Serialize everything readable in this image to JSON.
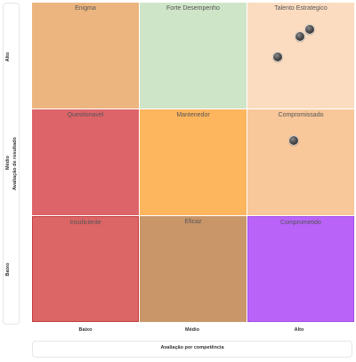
{
  "chart_data": {
    "type": "scatter",
    "xlabel": "Avaliação por competência",
    "ylabel": "Avaliação de resultado",
    "x_categories": [
      "Baixo",
      "Médio",
      "Alto"
    ],
    "y_categories": [
      "Baixo",
      "Médio",
      "Alto"
    ],
    "cells": [
      {
        "label": "Enigma",
        "x": "Baixo",
        "y": "Alto",
        "color": "#ecb57f"
      },
      {
        "label": "Forte Desempenho",
        "x": "Médio",
        "y": "Alto",
        "color": "#cfe5c8"
      },
      {
        "label": "Talento Estrategico",
        "x": "Alto",
        "y": "Alto",
        "color": "#fbdcc0"
      },
      {
        "label": "Questionavel",
        "x": "Baixo",
        "y": "Médio",
        "color": "#dd6468"
      },
      {
        "label": "Mantenedor",
        "x": "Médio",
        "y": "Médio",
        "color": "#fdb55e"
      },
      {
        "label": "Compromissado",
        "x": "Alto",
        "y": "Médio",
        "color": "#f8c79a"
      },
      {
        "label": "Insuficiente",
        "x": "Baixo",
        "y": "Baixo",
        "color": "#dc6565"
      },
      {
        "label": "Eficaz",
        "x": "Médio",
        "y": "Baixo",
        "color": "#c99669"
      },
      {
        "label": "Comprometido",
        "x": "Alto",
        "y": "Baixo",
        "color": "#b963f9"
      }
    ],
    "points": [
      {
        "x": 2.6,
        "y": 2.75
      },
      {
        "x": 2.51,
        "y": 2.68
      },
      {
        "x": 2.3,
        "y": 2.49
      },
      {
        "x": 2.45,
        "y": 1.71
      }
    ],
    "xlim": [
      0,
      3
    ],
    "ylim": [
      0,
      3
    ]
  }
}
